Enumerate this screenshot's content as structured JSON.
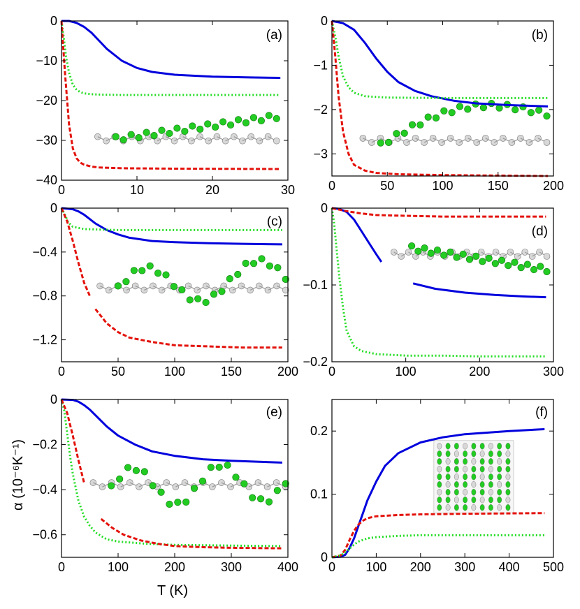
{
  "figure": {
    "xlabel": "T (K)",
    "ylabel": "α  (10⁻⁶K⁻¹)"
  },
  "colors": {
    "blue": "#0000dd",
    "red": "#e3120b",
    "green": "#22dd22"
  },
  "chart_data": [
    {
      "panel": "(a)",
      "type": "line",
      "title": "",
      "xlim": [
        0,
        30
      ],
      "ylim": [
        -40,
        0
      ],
      "xticks": [
        "0",
        "10",
        "20",
        "30"
      ],
      "xtick_values": [
        0,
        10,
        20,
        30
      ],
      "yticks": [
        "0",
        "−10",
        "−20",
        "−30",
        "−40"
      ],
      "ytick_values": [
        0,
        -10,
        -20,
        -30,
        -40
      ],
      "series": [
        {
          "name": "blue",
          "style": "solid",
          "color": "#0000dd",
          "x": [
            0,
            1,
            2,
            3,
            4,
            5,
            6,
            8,
            10,
            12,
            15,
            20,
            25,
            29
          ],
          "y": [
            0,
            0,
            -0.5,
            -1.5,
            -3,
            -5,
            -7,
            -10,
            -11.8,
            -12.8,
            -13.5,
            -14,
            -14.2,
            -14.3
          ]
        },
        {
          "name": "green",
          "style": "dotted",
          "color": "#22dd22",
          "x": [
            0,
            0.3,
            0.6,
            1,
            1.5,
            2,
            2.5,
            3,
            4,
            5,
            8,
            15,
            29
          ],
          "y": [
            0,
            -4,
            -9,
            -13,
            -16,
            -17.3,
            -17.9,
            -18.2,
            -18.4,
            -18.5,
            -18.6,
            -18.6,
            -18.6
          ]
        },
        {
          "name": "red",
          "style": "dashed",
          "color": "#e3120b",
          "x": [
            0,
            0.2,
            0.5,
            1,
            1.5,
            2,
            2.5,
            3,
            4,
            5,
            8,
            15,
            29
          ],
          "y": [
            0,
            -6,
            -14,
            -26,
            -32,
            -34.5,
            -35.6,
            -36.1,
            -36.6,
            -36.8,
            -37,
            -37.1,
            -37.2
          ]
        }
      ]
    },
    {
      "panel": "(b)",
      "type": "line",
      "title": "",
      "xlim": [
        0,
        200
      ],
      "ylim": [
        -3.5,
        0
      ],
      "xticks": [
        "0",
        "50",
        "100",
        "150",
        "200"
      ],
      "xtick_values": [
        0,
        50,
        100,
        150,
        200
      ],
      "yticks": [
        "0",
        "−1",
        "−2",
        "−3"
      ],
      "ytick_values": [
        0,
        -1,
        -2,
        -3
      ],
      "series": [
        {
          "name": "blue",
          "style": "solid",
          "color": "#0000dd",
          "x": [
            0,
            10,
            20,
            30,
            40,
            50,
            60,
            75,
            90,
            110,
            130,
            160,
            195
          ],
          "y": [
            0,
            -0.05,
            -0.2,
            -0.5,
            -0.85,
            -1.15,
            -1.38,
            -1.58,
            -1.7,
            -1.8,
            -1.86,
            -1.9,
            -1.93
          ]
        },
        {
          "name": "green",
          "style": "dotted",
          "color": "#22dd22",
          "x": [
            0,
            3,
            6,
            10,
            15,
            20,
            30,
            50,
            100,
            195
          ],
          "y": [
            0,
            -0.35,
            -0.8,
            -1.25,
            -1.5,
            -1.62,
            -1.7,
            -1.73,
            -1.74,
            -1.74
          ]
        },
        {
          "name": "red",
          "style": "dashed",
          "color": "#e3120b",
          "x": [
            0,
            3,
            6,
            10,
            15,
            20,
            30,
            40,
            60,
            100,
            195
          ],
          "y": [
            0,
            -0.8,
            -1.7,
            -2.5,
            -3.0,
            -3.25,
            -3.38,
            -3.43,
            -3.46,
            -3.48,
            -3.5
          ]
        }
      ]
    },
    {
      "panel": "(c)",
      "type": "line",
      "title": "",
      "xlim": [
        0,
        200
      ],
      "ylim": [
        -1.4,
        0
      ],
      "xticks": [
        "0",
        "50",
        "100",
        "150",
        "200"
      ],
      "xtick_values": [
        0,
        50,
        100,
        150,
        200
      ],
      "yticks": [
        "0",
        "−0.4",
        "−0.8",
        "−1.2"
      ],
      "ytick_values": [
        0,
        -0.4,
        -0.8,
        -1.2
      ],
      "series": [
        {
          "name": "blue",
          "style": "solid",
          "color": "#0000dd",
          "x": [
            0,
            10,
            15,
            20,
            25,
            30,
            40,
            50,
            60,
            80,
            100,
            130,
            160,
            195
          ],
          "y": [
            0,
            -0.01,
            -0.03,
            -0.06,
            -0.1,
            -0.14,
            -0.2,
            -0.24,
            -0.27,
            -0.3,
            -0.31,
            -0.32,
            -0.325,
            -0.33
          ]
        },
        {
          "name": "green",
          "style": "dotted",
          "color": "#22dd22",
          "x": [
            0,
            3,
            6,
            10,
            15,
            20,
            30,
            50,
            100,
            195
          ],
          "y": [
            0,
            -0.06,
            -0.13,
            -0.17,
            -0.18,
            -0.19,
            -0.195,
            -0.2,
            -0.2,
            -0.2
          ]
        },
        {
          "name": "red",
          "style": "dashed",
          "color": "#e3120b",
          "x": [
            0,
            5,
            10,
            15,
            20,
            25
          ],
          "y": [
            0,
            -0.12,
            -0.3,
            -0.5,
            -0.68,
            -0.8
          ]
        },
        {
          "name": "red-2",
          "style": "dashed",
          "color": "#e3120b",
          "x": [
            30,
            40,
            50,
            60,
            80,
            100,
            130,
            160,
            195
          ],
          "y": [
            -0.92,
            -1.05,
            -1.13,
            -1.18,
            -1.22,
            -1.25,
            -1.26,
            -1.27,
            -1.27
          ]
        }
      ]
    },
    {
      "panel": "(d)",
      "type": "line",
      "title": "",
      "xlim": [
        0,
        300
      ],
      "ylim": [
        -0.2,
        0
      ],
      "xticks": [
        "0",
        "100",
        "200",
        "300"
      ],
      "xtick_values": [
        0,
        100,
        200,
        300
      ],
      "yticks": [
        "0",
        "−0.1",
        "−0.2"
      ],
      "ytick_values": [
        0,
        -0.1,
        -0.2
      ],
      "series": [
        {
          "name": "blue",
          "style": "solid",
          "color": "#0000dd",
          "x": [
            0,
            10,
            20,
            30,
            40,
            50,
            60,
            67
          ],
          "y": [
            0,
            -0.001,
            -0.005,
            -0.015,
            -0.03,
            -0.045,
            -0.06,
            -0.07
          ]
        },
        {
          "name": "blue-2",
          "style": "solid",
          "color": "#0000dd",
          "x": [
            110,
            140,
            180,
            220,
            260,
            290
          ],
          "y": [
            -0.098,
            -0.105,
            -0.11,
            -0.113,
            -0.115,
            -0.116
          ]
        },
        {
          "name": "green",
          "style": "dotted",
          "color": "#22dd22",
          "x": [
            0,
            3,
            6,
            10,
            15,
            20,
            30,
            40,
            60,
            100,
            150,
            200,
            290
          ],
          "y": [
            0,
            -0.02,
            -0.05,
            -0.09,
            -0.13,
            -0.16,
            -0.18,
            -0.186,
            -0.19,
            -0.192,
            -0.192,
            -0.193,
            -0.193
          ]
        },
        {
          "name": "red",
          "style": "dashed",
          "color": "#e3120b",
          "x": [
            0,
            10,
            20,
            40,
            60,
            100,
            150,
            290
          ],
          "y": [
            0,
            -0.002,
            -0.004,
            -0.007,
            -0.009,
            -0.01,
            -0.011,
            -0.011
          ]
        }
      ]
    },
    {
      "panel": "(e)",
      "type": "line",
      "title": "",
      "xlim": [
        0,
        400
      ],
      "ylim": [
        -0.7,
        0
      ],
      "xticks": [
        "0",
        "100",
        "200",
        "300",
        "400"
      ],
      "xtick_values": [
        0,
        100,
        200,
        300,
        400
      ],
      "yticks": [
        "0",
        "−0.2",
        "−0.4",
        "−0.6"
      ],
      "ytick_values": [
        0,
        -0.2,
        -0.4,
        -0.6
      ],
      "series": [
        {
          "name": "blue",
          "style": "solid",
          "color": "#0000dd",
          "x": [
            0,
            20,
            30,
            40,
            50,
            60,
            80,
            100,
            130,
            160,
            200,
            250,
            300,
            390
          ],
          "y": [
            0,
            -0.002,
            -0.01,
            -0.025,
            -0.045,
            -0.07,
            -0.12,
            -0.16,
            -0.2,
            -0.23,
            -0.25,
            -0.265,
            -0.272,
            -0.28
          ]
        },
        {
          "name": "green",
          "style": "dotted",
          "color": "#22dd22",
          "x": [
            0,
            5,
            10,
            15,
            20,
            30,
            40,
            50,
            60,
            80,
            100,
            150,
            200,
            300,
            390
          ],
          "y": [
            0,
            -0.05,
            -0.15,
            -0.25,
            -0.33,
            -0.45,
            -0.52,
            -0.56,
            -0.59,
            -0.62,
            -0.63,
            -0.64,
            -0.645,
            -0.648,
            -0.65
          ]
        },
        {
          "name": "red",
          "style": "dashed",
          "color": "#e3120b",
          "x": [
            0,
            10,
            20,
            30,
            40
          ],
          "y": [
            0,
            -0.06,
            -0.16,
            -0.27,
            -0.37
          ]
        },
        {
          "name": "red-2",
          "style": "dashed",
          "color": "#e3120b",
          "x": [
            70,
            90,
            110,
            140,
            170,
            200,
            250,
            300,
            390
          ],
          "y": [
            -0.53,
            -0.57,
            -0.6,
            -0.625,
            -0.64,
            -0.65,
            -0.655,
            -0.658,
            -0.66
          ]
        }
      ]
    },
    {
      "panel": "(f)",
      "type": "line",
      "title": "",
      "xlim": [
        0,
        500
      ],
      "ylim": [
        0,
        0.25
      ],
      "xticks": [
        "0",
        "100",
        "200",
        "300",
        "400",
        "500"
      ],
      "xtick_values": [
        0,
        100,
        200,
        300,
        400,
        500
      ],
      "yticks": [
        "0",
        "0.1",
        "0.2"
      ],
      "ytick_values": [
        0,
        0.1,
        0.2
      ],
      "series": [
        {
          "name": "blue",
          "style": "solid",
          "color": "#0000dd",
          "x": [
            0,
            20,
            30,
            40,
            50,
            60,
            70,
            80,
            100,
            120,
            150,
            200,
            250,
            300,
            400,
            480
          ],
          "y": [
            0,
            0.001,
            0.004,
            0.015,
            0.03,
            0.05,
            0.07,
            0.09,
            0.12,
            0.145,
            0.165,
            0.182,
            0.19,
            0.195,
            0.2,
            0.203
          ]
        },
        {
          "name": "red",
          "style": "dashed",
          "color": "#e3120b",
          "x": [
            0,
            20,
            30,
            40,
            50,
            60,
            70,
            80,
            100,
            150,
            200,
            300,
            480
          ],
          "y": [
            0,
            0.003,
            0.012,
            0.028,
            0.042,
            0.052,
            0.058,
            0.062,
            0.065,
            0.067,
            0.068,
            0.069,
            0.07
          ]
        },
        {
          "name": "green",
          "style": "dotted",
          "color": "#22dd22",
          "x": [
            0,
            20,
            30,
            40,
            50,
            60,
            80,
            100,
            150,
            200,
            300,
            480
          ],
          "y": [
            0,
            0.003,
            0.008,
            0.014,
            0.02,
            0.025,
            0.03,
            0.032,
            0.034,
            0.035,
            0.035,
            0.035
          ]
        }
      ]
    }
  ]
}
